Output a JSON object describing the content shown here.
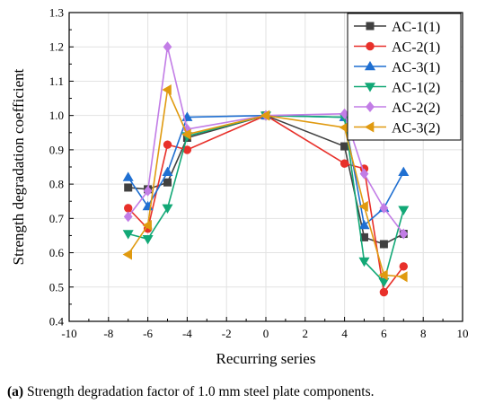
{
  "caption": {
    "label": "(a)",
    "text": " Strength degradation factor of 1.0 mm steel plate components."
  },
  "chart_data": {
    "type": "line",
    "xlabel": "Recurring series",
    "ylabel": "Strength degradation coefficient",
    "xlim": [
      -10,
      10
    ],
    "ylim": [
      0.4,
      1.3
    ],
    "xticks": [
      -10,
      -8,
      -6,
      -4,
      -2,
      0,
      2,
      4,
      6,
      8,
      10
    ],
    "yticks": [
      0.4,
      0.5,
      0.6,
      0.7,
      0.8,
      0.9,
      1.0,
      1.1,
      1.2,
      1.3
    ],
    "ytick_labels": [
      "0.4",
      "0.5",
      "0.6",
      "0.7",
      "0.8",
      "0.9",
      "1.0",
      "1.1",
      "1.2",
      "1.3"
    ],
    "grid": true,
    "legend_position": "top-right",
    "series": [
      {
        "name": "AC-1(1)",
        "color": "#404040",
        "marker": "square",
        "x": [
          -7,
          -6,
          -5,
          -4,
          0,
          4,
          5,
          6,
          7
        ],
        "y": [
          0.79,
          0.785,
          0.805,
          0.935,
          1.0,
          0.91,
          0.645,
          0.625,
          0.655
        ]
      },
      {
        "name": "AC-2(1)",
        "color": "#e8302a",
        "marker": "circle",
        "x": [
          -7,
          -6,
          -5,
          -4,
          0,
          4,
          5,
          6,
          7
        ],
        "y": [
          0.73,
          0.67,
          0.915,
          0.9,
          1.0,
          0.86,
          0.845,
          0.485,
          0.56
        ]
      },
      {
        "name": "AC-3(1)",
        "color": "#1f6fd1",
        "marker": "triangle-up",
        "x": [
          -7,
          -6,
          -5,
          -4,
          0,
          4,
          5,
          6,
          7
        ],
        "y": [
          0.82,
          0.735,
          0.835,
          0.995,
          1.0,
          0.995,
          0.68,
          0.73,
          0.835
        ]
      },
      {
        "name": "AC-1(2)",
        "color": "#12a876",
        "marker": "triangle-down",
        "x": [
          -7,
          -6,
          -5,
          -4,
          0,
          4,
          5,
          6,
          7
        ],
        "y": [
          0.655,
          0.64,
          0.73,
          0.94,
          1.0,
          0.995,
          0.575,
          0.515,
          0.725
        ]
      },
      {
        "name": "AC-2(2)",
        "color": "#c27de6",
        "marker": "diamond",
        "x": [
          -7,
          -6,
          -5,
          -4,
          0,
          4,
          5,
          6,
          7
        ],
        "y": [
          0.705,
          0.78,
          1.2,
          0.96,
          1.0,
          1.005,
          0.83,
          0.73,
          0.655
        ]
      },
      {
        "name": "AC-3(2)",
        "color": "#e09a10",
        "marker": "triangle-left",
        "x": [
          -7,
          -6,
          -5,
          -4,
          0,
          4,
          5,
          6,
          7
        ],
        "y": [
          0.595,
          0.68,
          1.075,
          0.945,
          1.0,
          0.965,
          0.735,
          0.535,
          0.53
        ]
      }
    ]
  }
}
